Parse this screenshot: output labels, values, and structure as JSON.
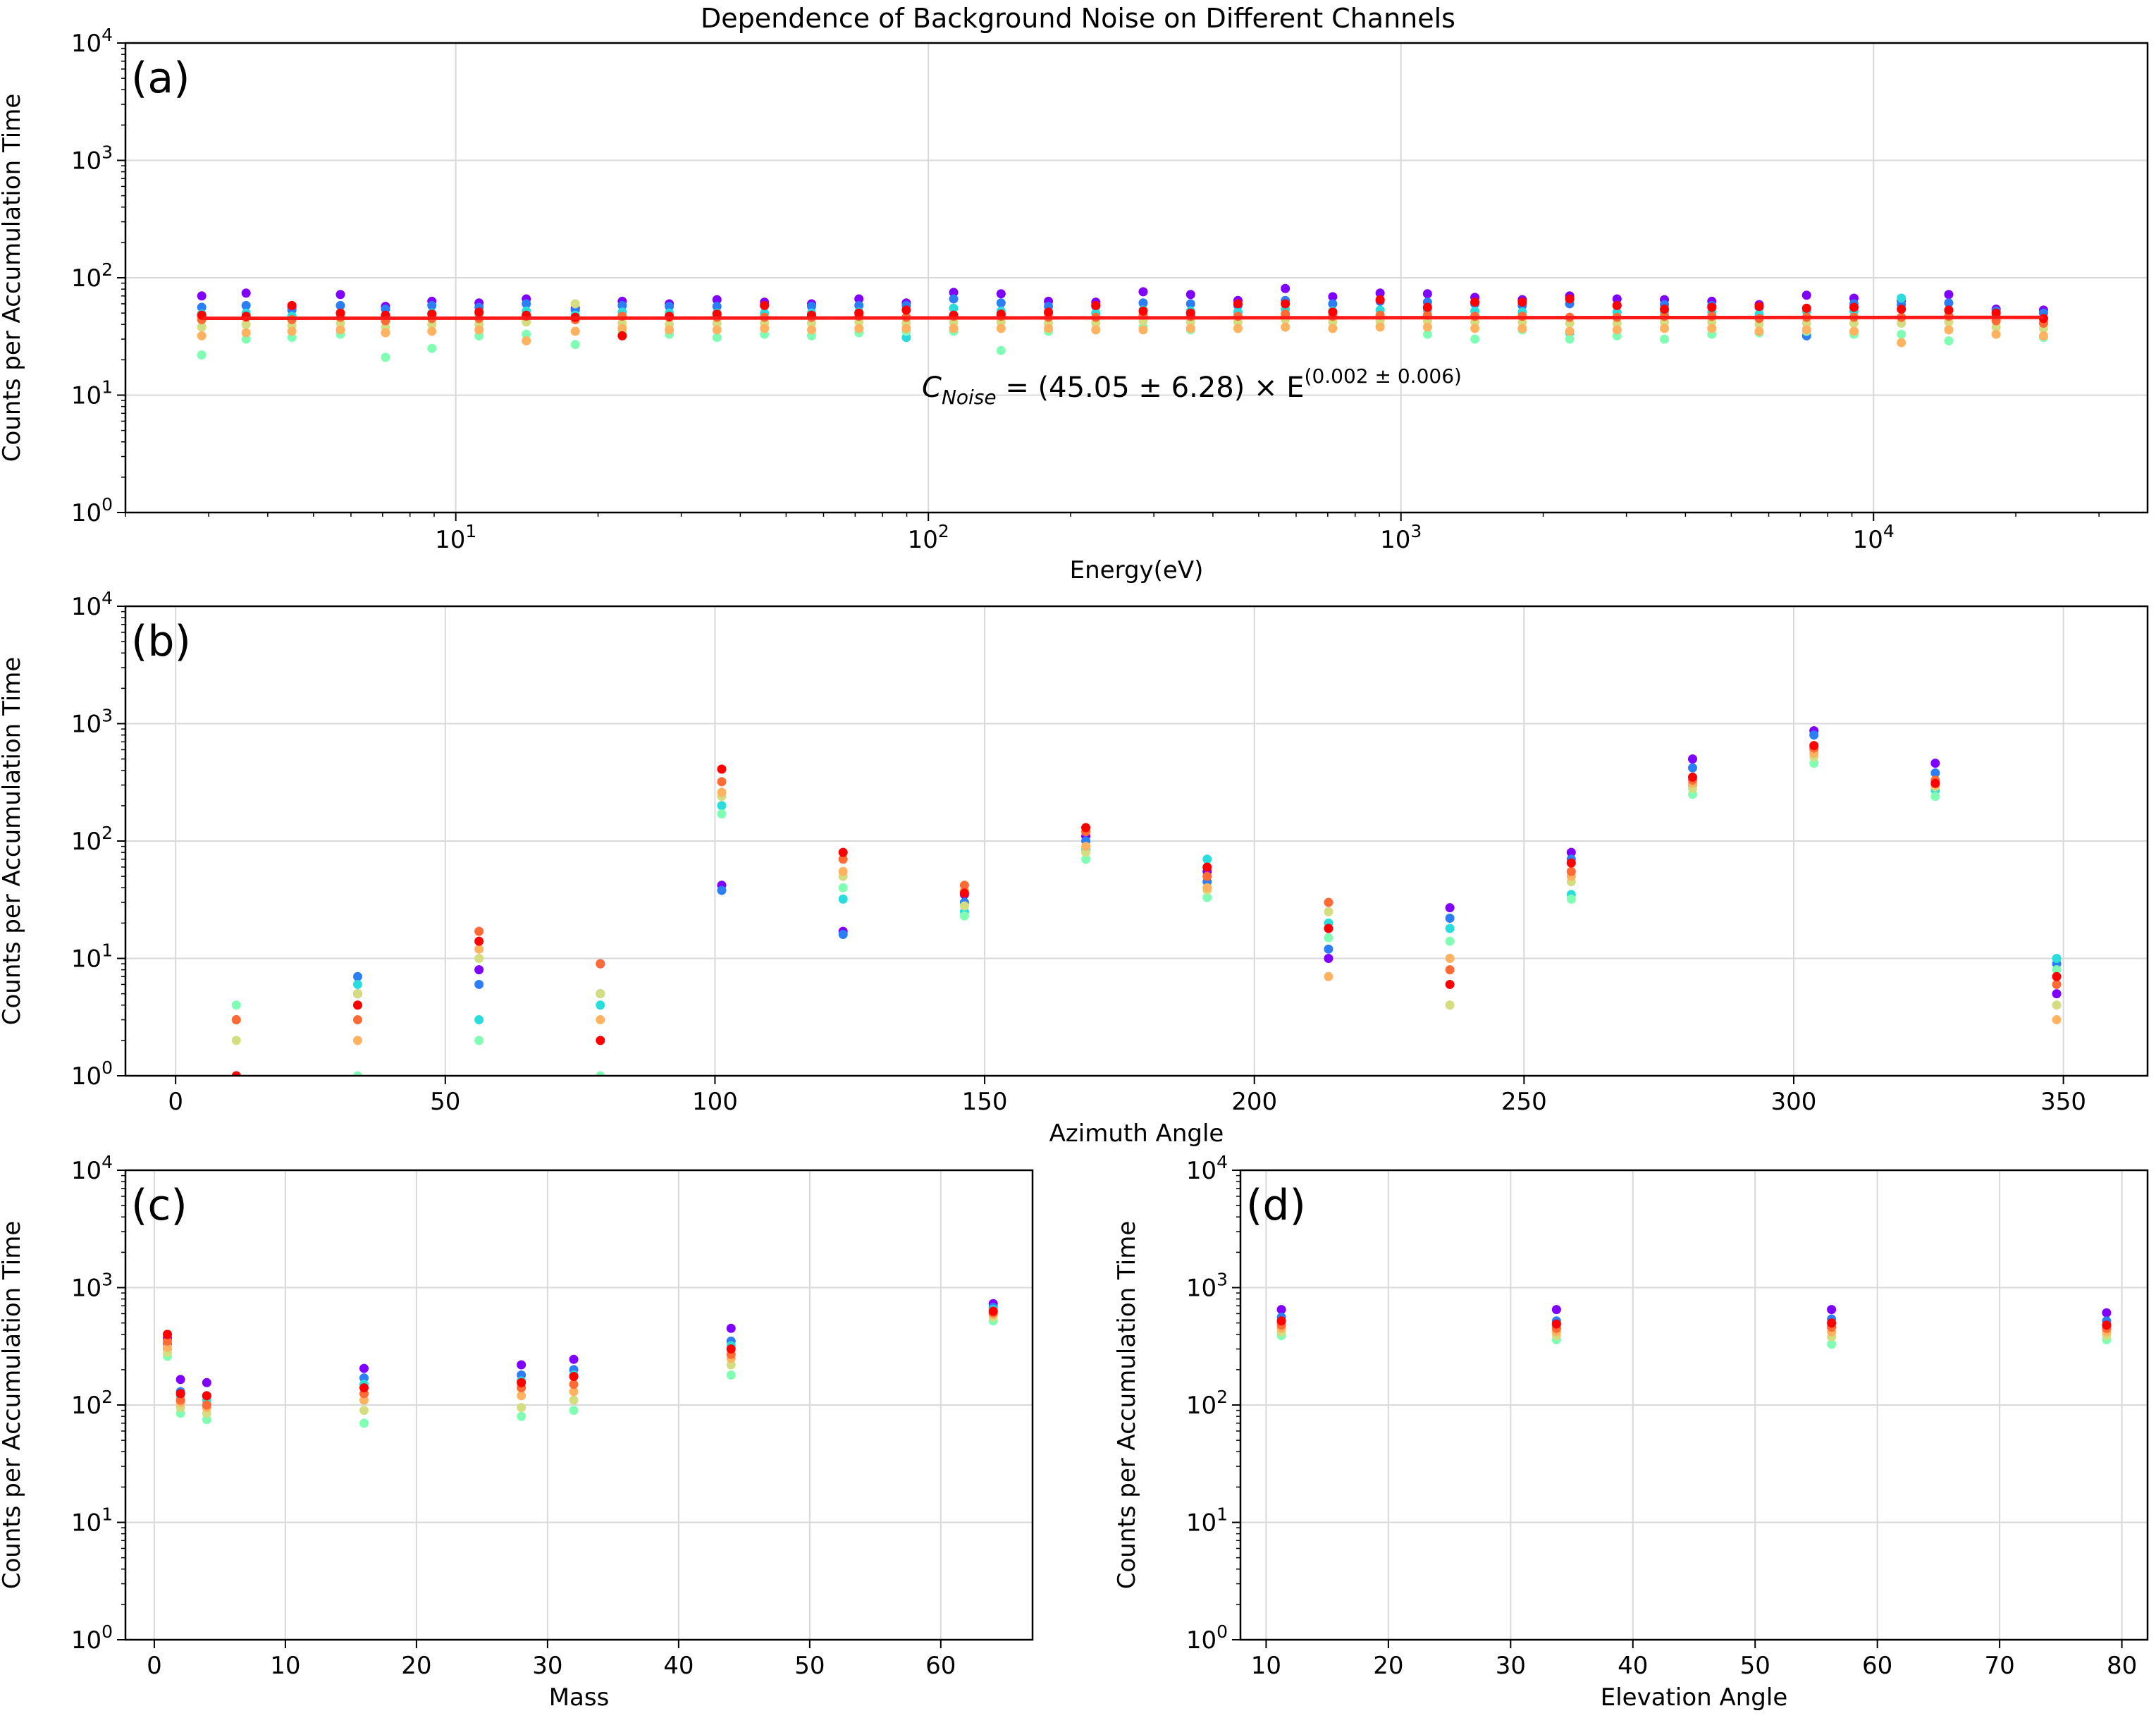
{
  "figure": {
    "title": "Dependence of Background Noise on Different Channels"
  },
  "colors": {
    "fit_line": "#ff1a1a",
    "grid": "#d9d9d9",
    "channel_palette": [
      "#8000ff",
      "#2c7ef7",
      "#2adddd",
      "#80ffb4",
      "#d4dd80",
      "#ffb360",
      "#ff6a35",
      "#ff0000"
    ]
  },
  "chart_data": [
    {
      "panel_label": "(a)",
      "type": "scatter",
      "xlabel": "Energy(eV)",
      "ylabel": "Counts per Accumulation Time",
      "xscale": "log",
      "yscale": "log",
      "xlim": [
        2.0,
        38000
      ],
      "ylim": [
        1,
        10000
      ],
      "x_ticks": [
        "10^1",
        "10^2",
        "10^3",
        "10^4"
      ],
      "y_ticks": [
        "10^0",
        "10^1",
        "10^2",
        "10^3",
        "10^4"
      ],
      "grid": true,
      "annotation": {
        "lhs": "C",
        "lhs_sub": "Noise",
        "rhs": " = (45.05 ± 6.28) × E",
        "exponent": "(0.002 ± 0.006)"
      },
      "fit": {
        "amplitude": 45.05,
        "amplitude_err": 6.28,
        "exponent": 0.002,
        "exponent_err": 0.006
      },
      "x": [
        2.9,
        3.6,
        4.5,
        5.7,
        7.1,
        8.9,
        11.2,
        14.1,
        17.9,
        22.5,
        28.3,
        35.7,
        45.0,
        56.6,
        71.3,
        89.8,
        113.1,
        142.5,
        179.5,
        226.1,
        284.8,
        358.8,
        451.9,
        569.3,
        717.1,
        903.4,
        1138,
        1433.5,
        1805.9,
        2275,
        2865.5,
        3609.9,
        4547.4,
        5728.2,
        7216.1,
        9089.9,
        11451,
        14425,
        18171,
        22891
      ],
      "series": [
        {
          "values": [
            70,
            74,
            56,
            72,
            57,
            63,
            61,
            66,
            55,
            63,
            60,
            65,
            62,
            60,
            66,
            61,
            75,
            73,
            63,
            62,
            76,
            72,
            64,
            81,
            69,
            74,
            73,
            68,
            65,
            70,
            66,
            65,
            63,
            59,
            71,
            67,
            64,
            72,
            54,
            53
          ]
        },
        {
          "values": [
            56,
            58,
            53,
            58,
            54,
            58,
            56,
            60,
            53,
            58,
            57,
            57,
            58,
            57,
            58,
            58,
            66,
            61,
            57,
            57,
            61,
            60,
            58,
            64,
            60,
            63,
            62,
            60,
            58,
            60,
            58,
            59,
            58,
            56,
            32,
            60,
            59,
            61,
            52,
            50
          ]
        },
        {
          "values": [
            49,
            50,
            47,
            50,
            47,
            50,
            49,
            52,
            48,
            51,
            50,
            50,
            50,
            50,
            51,
            31,
            55,
            52,
            50,
            50,
            53,
            52,
            51,
            54,
            52,
            53,
            53,
            52,
            51,
            34,
            51,
            51,
            51,
            49,
            52,
            52,
            67,
            52,
            47,
            45
          ]
        },
        {
          "values": [
            22,
            30,
            31,
            33,
            21,
            25,
            32,
            33,
            27,
            35,
            33,
            31,
            33,
            32,
            34,
            35,
            35,
            24,
            35,
            36,
            38,
            36,
            37,
            38,
            37,
            39,
            33,
            30,
            36,
            30,
            32,
            30,
            33,
            34,
            35,
            33,
            33,
            29,
            33,
            31
          ]
        },
        {
          "values": [
            38,
            40,
            39,
            41,
            38,
            40,
            40,
            42,
            60,
            41,
            40,
            41,
            41,
            41,
            42,
            41,
            42,
            42,
            41,
            41,
            43,
            42,
            42,
            44,
            42,
            43,
            43,
            42,
            42,
            41,
            41,
            42,
            42,
            40,
            41,
            41,
            41,
            42,
            38,
            37
          ]
        },
        {
          "values": [
            32,
            34,
            35,
            36,
            34,
            35,
            36,
            29,
            35,
            37,
            36,
            36,
            37,
            36,
            37,
            37,
            37,
            37,
            37,
            36,
            36,
            37,
            37,
            38,
            37,
            38,
            38,
            37,
            37,
            35,
            36,
            37,
            37,
            35,
            36,
            35,
            28,
            36,
            33,
            32
          ]
        },
        {
          "values": [
            44,
            46,
            44,
            46,
            43,
            45,
            45,
            47,
            44,
            47,
            46,
            46,
            46,
            46,
            47,
            46,
            47,
            47,
            46,
            46,
            48,
            47,
            47,
            49,
            47,
            48,
            48,
            47,
            47,
            46,
            46,
            47,
            47,
            45,
            46,
            46,
            46,
            47,
            43,
            41
          ]
        },
        {
          "values": [
            48,
            47,
            58,
            50,
            48,
            49,
            51,
            48,
            46,
            32,
            47,
            49,
            58,
            48,
            50,
            53,
            48,
            49,
            51,
            58,
            52,
            50,
            60,
            60,
            51,
            65,
            56,
            62,
            62,
            66,
            58,
            54,
            56,
            57,
            55,
            56,
            54,
            53,
            50,
            45
          ]
        }
      ]
    },
    {
      "panel_label": "(b)",
      "type": "scatter",
      "xlabel": "Azimuth Angle",
      "ylabel": "Counts per Accumulation Time",
      "yscale": "log",
      "xlim": [
        -9.3,
        365.6
      ],
      "ylim": [
        1,
        10000
      ],
      "x_ticks": [
        0,
        50,
        100,
        150,
        200,
        250,
        300,
        350
      ],
      "y_ticks": [
        "10^0",
        "10^1",
        "10^2",
        "10^3",
        "10^4"
      ],
      "grid": true,
      "x": [
        11.25,
        33.75,
        56.25,
        78.75,
        101.25,
        123.75,
        146.25,
        168.75,
        191.25,
        213.75,
        236.25,
        258.75,
        281.25,
        303.75,
        326.25,
        348.75
      ],
      "series": [
        {
          "values": [
            null,
            5,
            8,
            9,
            42,
            17,
            35,
            110,
            55,
            10,
            27,
            80,
            500,
            870,
            460,
            5
          ]
        },
        {
          "values": [
            null,
            7,
            6,
            5,
            38,
            16,
            30,
            100,
            45,
            12,
            22,
            70,
            420,
            800,
            380,
            9
          ]
        },
        {
          "values": [
            1,
            6,
            3,
            4,
            200,
            32,
            25,
            85,
            70,
            20,
            18,
            35,
            300,
            600,
            270,
            10
          ]
        },
        {
          "values": [
            4,
            1,
            2,
            1,
            170,
            40,
            23,
            70,
            33,
            15,
            14,
            32,
            250,
            460,
            240,
            8
          ]
        },
        {
          "values": [
            2,
            5,
            10,
            5,
            240,
            50,
            28,
            80,
            38,
            25,
            4,
            45,
            280,
            520,
            290,
            4
          ]
        },
        {
          "values": [
            3,
            2,
            12,
            3,
            260,
            55,
            38,
            90,
            40,
            7,
            10,
            50,
            310,
            560,
            300,
            3
          ]
        },
        {
          "values": [
            3,
            3,
            17,
            9,
            320,
            70,
            42,
            120,
            50,
            30,
            8,
            55,
            330,
            620,
            330,
            6
          ]
        },
        {
          "values": [
            1,
            4,
            14,
            2,
            410,
            80,
            36,
            130,
            60,
            18,
            6,
            65,
            350,
            650,
            310,
            7
          ]
        }
      ]
    },
    {
      "panel_label": "(c)",
      "type": "scatter",
      "xlabel": "Mass",
      "ylabel": "Counts per Accumulation Time",
      "yscale": "log",
      "xlim": [
        -2.2,
        67.0
      ],
      "ylim": [
        1,
        10000
      ],
      "x_ticks": [
        0,
        10,
        20,
        30,
        40,
        50,
        60
      ],
      "y_ticks": [
        "10^0",
        "10^1",
        "10^2",
        "10^3",
        "10^4"
      ],
      "grid": true,
      "x": [
        1,
        2,
        4,
        16,
        28,
        32,
        44,
        64
      ],
      "series": [
        {
          "values": [
            370,
            165,
            155,
            205,
            220,
            245,
            450,
            730
          ]
        },
        {
          "values": [
            330,
            130,
            120,
            170,
            180,
            200,
            350,
            680
          ]
        },
        {
          "values": [
            300,
            120,
            110,
            150,
            160,
            180,
            320,
            650
          ]
        },
        {
          "values": [
            260,
            85,
            75,
            70,
            80,
            90,
            180,
            520
          ]
        },
        {
          "values": [
            280,
            95,
            85,
            90,
            95,
            110,
            220,
            560
          ]
        },
        {
          "values": [
            310,
            105,
            95,
            110,
            120,
            130,
            250,
            590
          ]
        },
        {
          "values": [
            350,
            110,
            100,
            125,
            140,
            150,
            270,
            610
          ]
        },
        {
          "values": [
            400,
            125,
            120,
            140,
            155,
            175,
            300,
            630
          ]
        }
      ]
    },
    {
      "panel_label": "(d)",
      "type": "scatter",
      "xlabel": "Elevation Angle",
      "ylabel": "Counts per Accumulation Time",
      "yscale": "log",
      "xlim": [
        7.9,
        82.1
      ],
      "ylim": [
        1,
        10000
      ],
      "x_ticks": [
        10,
        20,
        30,
        40,
        50,
        60,
        70,
        80
      ],
      "y_ticks": [
        "10^0",
        "10^1",
        "10^2",
        "10^3",
        "10^4"
      ],
      "grid": true,
      "x": [
        11.25,
        33.75,
        56.25,
        78.75
      ],
      "series": [
        {
          "values": [
            650,
            650,
            650,
            610
          ]
        },
        {
          "values": [
            560,
            520,
            540,
            520
          ]
        },
        {
          "values": [
            500,
            470,
            480,
            460
          ]
        },
        {
          "values": [
            390,
            360,
            330,
            360
          ]
        },
        {
          "values": [
            420,
            390,
            380,
            390
          ]
        },
        {
          "values": [
            450,
            420,
            420,
            420
          ]
        },
        {
          "values": [
            480,
            450,
            460,
            450
          ]
        },
        {
          "values": [
            520,
            490,
            500,
            480
          ]
        }
      ]
    }
  ]
}
